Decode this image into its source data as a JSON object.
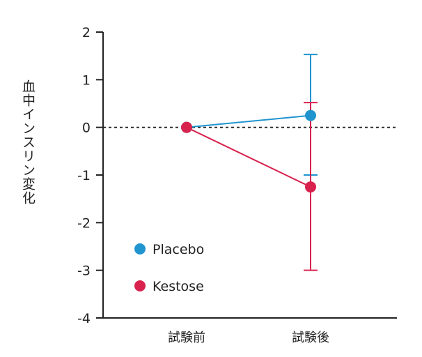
{
  "chart_data": {
    "type": "line",
    "title": "",
    "xlabel": "",
    "ylabel": "血中インスリン変化",
    "categories": [
      "試験前",
      "試験後"
    ],
    "ylim": [
      -4,
      2
    ],
    "yticks": [
      2,
      1,
      0,
      -1,
      -2,
      -3,
      -4
    ],
    "grid": false,
    "reference_line": {
      "y": 0,
      "style": "dashed"
    },
    "legend_position": "bottom-left",
    "series": [
      {
        "name": "Placebo",
        "color": "#1f94cf",
        "values": [
          0,
          0.25
        ],
        "error_bars": [
          null,
          {
            "upper": 1.53,
            "lower": -1.0
          }
        ]
      },
      {
        "name": "Kestose",
        "color": "#d9214d",
        "values": [
          0,
          -1.25
        ],
        "error_bars": [
          null,
          {
            "upper": 0.52,
            "lower": -3.0
          }
        ]
      }
    ]
  }
}
